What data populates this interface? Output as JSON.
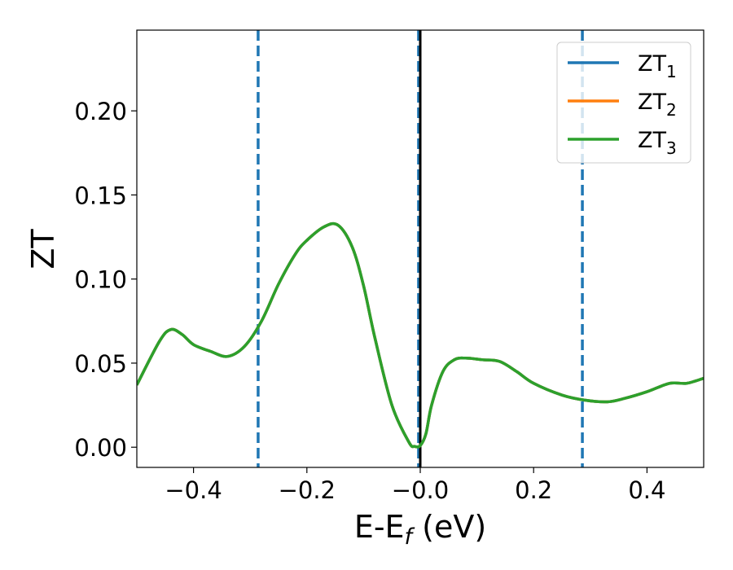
{
  "chart_data": {
    "type": "line",
    "xlabel": {
      "main": "E-E",
      "sub": "f",
      "suffix": " (eV)"
    },
    "ylabel": "ZT",
    "xlim": [
      -0.5,
      0.5
    ],
    "ylim": [
      -0.012,
      0.248
    ],
    "xticks": [
      {
        "value": -0.4,
        "label": "−0.4"
      },
      {
        "value": -0.2,
        "label": "−0.2"
      },
      {
        "value": 0.0,
        "label": "−0.0"
      },
      {
        "value": 0.2,
        "label": "0.2"
      },
      {
        "value": 0.4,
        "label": "0.4"
      }
    ],
    "yticks": [
      {
        "value": 0.0,
        "label": "0.00"
      },
      {
        "value": 0.05,
        "label": "0.05"
      },
      {
        "value": 0.1,
        "label": "0.10"
      },
      {
        "value": 0.15,
        "label": "0.15"
      },
      {
        "value": 0.2,
        "label": "0.20"
      }
    ],
    "grid": false,
    "legend_position": "top-right",
    "series": [
      {
        "name": "ZT",
        "sub": "1",
        "color": "#1f77b4",
        "x": [
          -0.5,
          -0.46,
          -0.44,
          -0.42,
          -0.4,
          -0.37,
          -0.34,
          -0.31,
          -0.28,
          -0.25,
          -0.22,
          -0.2,
          -0.17,
          -0.145,
          -0.12,
          -0.1,
          -0.08,
          -0.05,
          -0.02,
          -0.01,
          0.0,
          0.01,
          0.02,
          0.04,
          0.06,
          0.08,
          0.11,
          0.14,
          0.17,
          0.2,
          0.25,
          0.29,
          0.33,
          0.36,
          0.4,
          0.44,
          0.47,
          0.5
        ],
        "y": [
          0.037,
          0.063,
          0.07,
          0.067,
          0.061,
          0.057,
          0.054,
          0.06,
          0.075,
          0.097,
          0.115,
          0.123,
          0.131,
          0.132,
          0.119,
          0.096,
          0.065,
          0.025,
          0.003,
          0.0005,
          0.001,
          0.008,
          0.025,
          0.045,
          0.052,
          0.053,
          0.052,
          0.051,
          0.045,
          0.038,
          0.031,
          0.028,
          0.027,
          0.029,
          0.033,
          0.038,
          0.038,
          0.041
        ]
      },
      {
        "name": "ZT",
        "sub": "2",
        "color": "#ff7f0e",
        "x": [
          -0.5,
          -0.46,
          -0.44,
          -0.42,
          -0.4,
          -0.37,
          -0.34,
          -0.31,
          -0.28,
          -0.25,
          -0.22,
          -0.2,
          -0.17,
          -0.145,
          -0.12,
          -0.1,
          -0.08,
          -0.05,
          -0.02,
          -0.01,
          0.0,
          0.01,
          0.02,
          0.04,
          0.06,
          0.08,
          0.11,
          0.14,
          0.17,
          0.2,
          0.25,
          0.29,
          0.33,
          0.36,
          0.4,
          0.44,
          0.47,
          0.5
        ],
        "y": [
          0.037,
          0.063,
          0.07,
          0.067,
          0.061,
          0.057,
          0.054,
          0.06,
          0.075,
          0.097,
          0.115,
          0.123,
          0.131,
          0.132,
          0.119,
          0.096,
          0.065,
          0.025,
          0.003,
          0.0005,
          0.001,
          0.008,
          0.025,
          0.045,
          0.052,
          0.053,
          0.052,
          0.051,
          0.045,
          0.038,
          0.031,
          0.028,
          0.027,
          0.029,
          0.033,
          0.038,
          0.038,
          0.041
        ]
      },
      {
        "name": "ZT",
        "sub": "3",
        "color": "#2ca02c",
        "x": [
          -0.5,
          -0.46,
          -0.44,
          -0.42,
          -0.4,
          -0.37,
          -0.34,
          -0.31,
          -0.28,
          -0.25,
          -0.22,
          -0.2,
          -0.17,
          -0.145,
          -0.12,
          -0.1,
          -0.08,
          -0.05,
          -0.02,
          -0.01,
          0.0,
          0.01,
          0.02,
          0.04,
          0.06,
          0.08,
          0.11,
          0.14,
          0.17,
          0.2,
          0.25,
          0.29,
          0.33,
          0.36,
          0.4,
          0.44,
          0.47,
          0.5
        ],
        "y": [
          0.037,
          0.063,
          0.07,
          0.067,
          0.061,
          0.057,
          0.054,
          0.06,
          0.075,
          0.097,
          0.115,
          0.123,
          0.131,
          0.132,
          0.119,
          0.096,
          0.065,
          0.025,
          0.003,
          0.0005,
          0.001,
          0.008,
          0.025,
          0.045,
          0.052,
          0.053,
          0.052,
          0.051,
          0.045,
          0.038,
          0.031,
          0.028,
          0.027,
          0.029,
          0.033,
          0.038,
          0.038,
          0.041
        ]
      }
    ],
    "vlines": [
      {
        "x": -0.286,
        "style": "dashed",
        "color": "#1f77b4"
      },
      {
        "x": 0.0,
        "style": "solid",
        "color": "#000000"
      },
      {
        "x": -0.003,
        "style": "dashed",
        "color": "#1f77b4"
      },
      {
        "x": 0.286,
        "style": "dashed",
        "color": "#1f77b4"
      }
    ]
  }
}
